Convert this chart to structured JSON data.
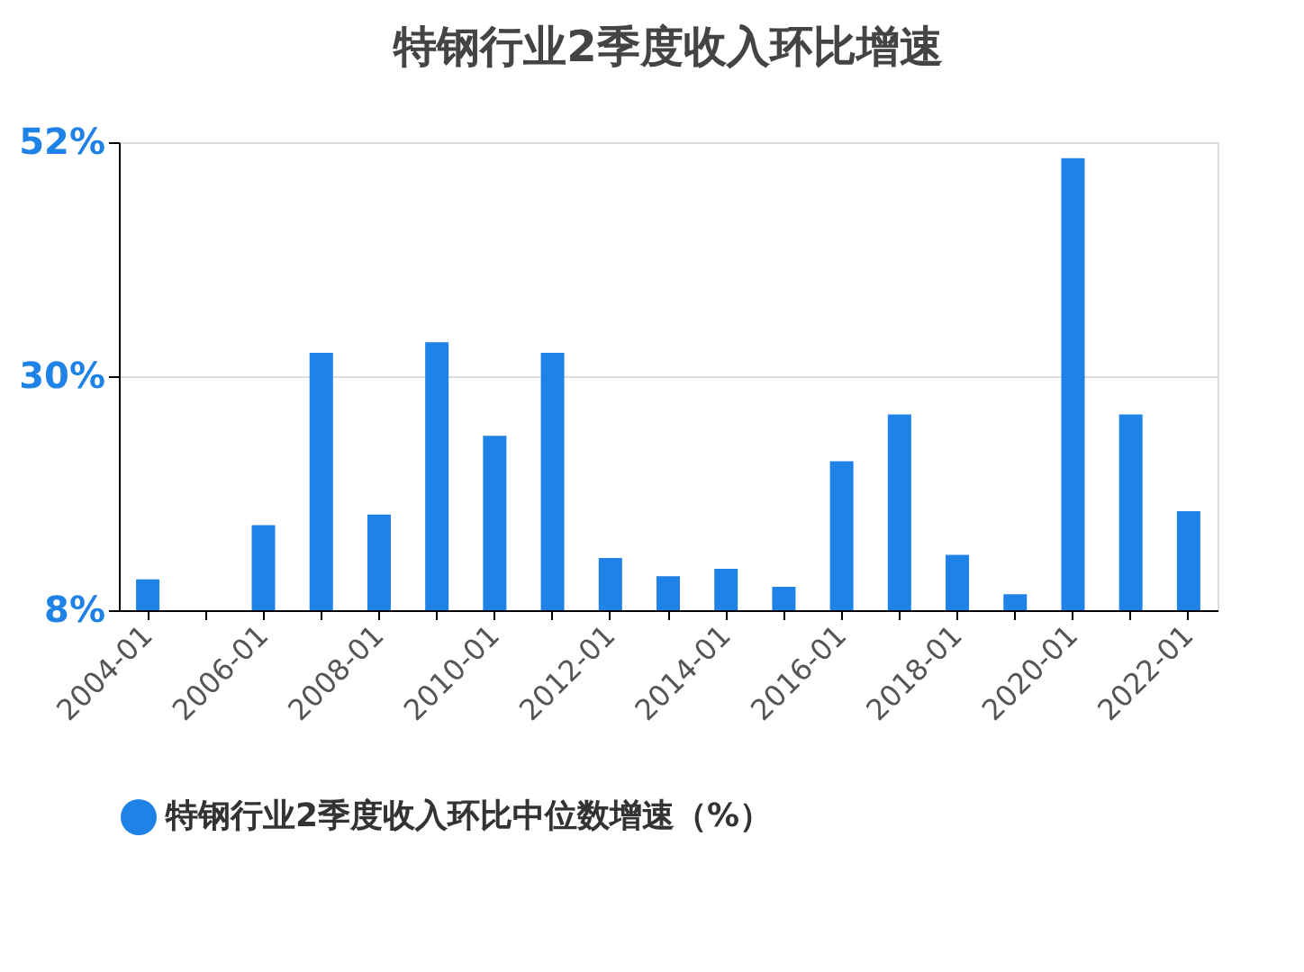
{
  "chart_data": {
    "type": "bar",
    "title": "特钢行业2季度收入环比增速",
    "categories": [
      "2004-01",
      null,
      "2006-01",
      null,
      "2008-01",
      null,
      "2010-01",
      null,
      "2012-01",
      null,
      "2014-01",
      null,
      "2016-01",
      null,
      "2018-01",
      null,
      "2020-01",
      null,
      "2022-01"
    ],
    "series": [
      {
        "name": "特钢行业2季度收入环比中位数增速（%）",
        "color": "#1e82e6",
        "values": [
          10.9,
          null,
          16.0,
          32.2,
          17.0,
          33.2,
          24.4,
          32.2,
          12.9,
          11.2,
          11.9,
          10.2,
          22.0,
          26.4,
          13.2,
          9.5,
          50.5,
          26.4,
          17.3
        ]
      }
    ],
    "ylim": [
      8,
      52
    ],
    "yticks": [
      {
        "value": 8,
        "label": "8%"
      },
      {
        "value": 30,
        "label": "30%"
      },
      {
        "value": 52,
        "label": "52%"
      }
    ],
    "grid": "y",
    "legend": "bottom"
  }
}
